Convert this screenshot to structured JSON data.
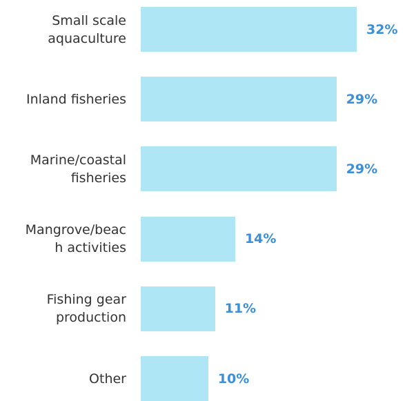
{
  "chart_data": {
    "type": "bar",
    "orientation": "horizontal",
    "categories": [
      "Small scale\naquaculture",
      "Inland fisheries",
      "Marine/coastal\nfisheries",
      "Mangrove/beac\nh activities",
      "Fishing gear\nproduction",
      "Other"
    ],
    "values": [
      32,
      29,
      29,
      14,
      11,
      10
    ],
    "value_labels": [
      "32%",
      "29%",
      "29%",
      "14%",
      "11%",
      "10%"
    ],
    "color": "#aee6f6",
    "label_color": "#3a8fd8"
  }
}
